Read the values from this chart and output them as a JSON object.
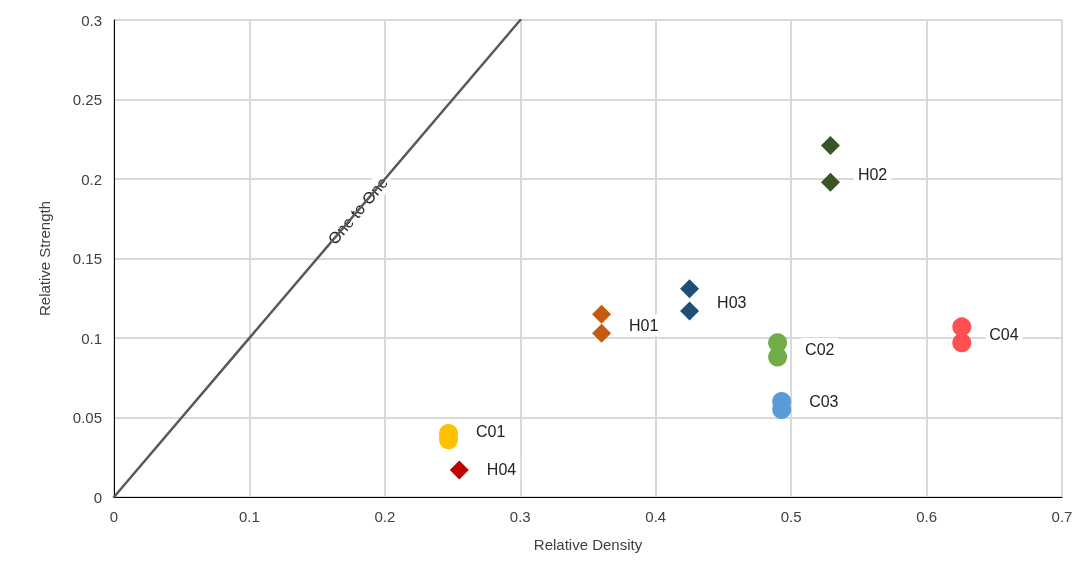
{
  "chart_data": {
    "type": "scatter",
    "xlabel": "Relative Density",
    "ylabel": "Relative Strength",
    "xlim": [
      0,
      0.7
    ],
    "xticks": [
      0,
      0.1,
      0.2,
      0.3,
      0.4,
      0.5,
      0.6,
      0.7
    ],
    "ylim": [
      0,
      0.3
    ],
    "yticks": [
      0,
      0.05,
      0.1,
      0.15,
      0.2,
      0.25,
      0.3
    ],
    "grid": true,
    "legend": false,
    "series": [
      {
        "name": "One to One",
        "type": "line",
        "color": "#595959",
        "marker": "none",
        "line_style": "solid",
        "x": [
          0,
          0.3
        ],
        "values": [
          0,
          0.3
        ]
      },
      {
        "name": "C01",
        "color": "#ffc000",
        "marker": "circle",
        "x": [
          0.247,
          0.247
        ],
        "values": [
          0.04,
          0.036
        ]
      },
      {
        "name": "H04",
        "color": "#c00000",
        "marker": "diamond",
        "x": [
          0.255
        ],
        "values": [
          0.017
        ]
      },
      {
        "name": "H01",
        "color": "#c55a11",
        "marker": "diamond",
        "x": [
          0.36,
          0.36
        ],
        "values": [
          0.115,
          0.103
        ]
      },
      {
        "name": "H03",
        "color": "#1f4e79",
        "marker": "diamond",
        "x": [
          0.425,
          0.425
        ],
        "values": [
          0.131,
          0.117
        ]
      },
      {
        "name": "C02",
        "color": "#70ad47",
        "marker": "circle",
        "x": [
          0.49,
          0.49
        ],
        "values": [
          0.097,
          0.088
        ]
      },
      {
        "name": "C03",
        "color": "#5b9bd5",
        "marker": "circle",
        "x": [
          0.493,
          0.493
        ],
        "values": [
          0.06,
          0.055
        ]
      },
      {
        "name": "H02",
        "color": "#375623",
        "marker": "diamond",
        "x": [
          0.529,
          0.529
        ],
        "values": [
          0.221,
          0.198
        ]
      },
      {
        "name": "C04",
        "color": "#ff5050",
        "marker": "circle",
        "x": [
          0.626,
          0.626
        ],
        "values": [
          0.107,
          0.097
        ]
      }
    ]
  }
}
